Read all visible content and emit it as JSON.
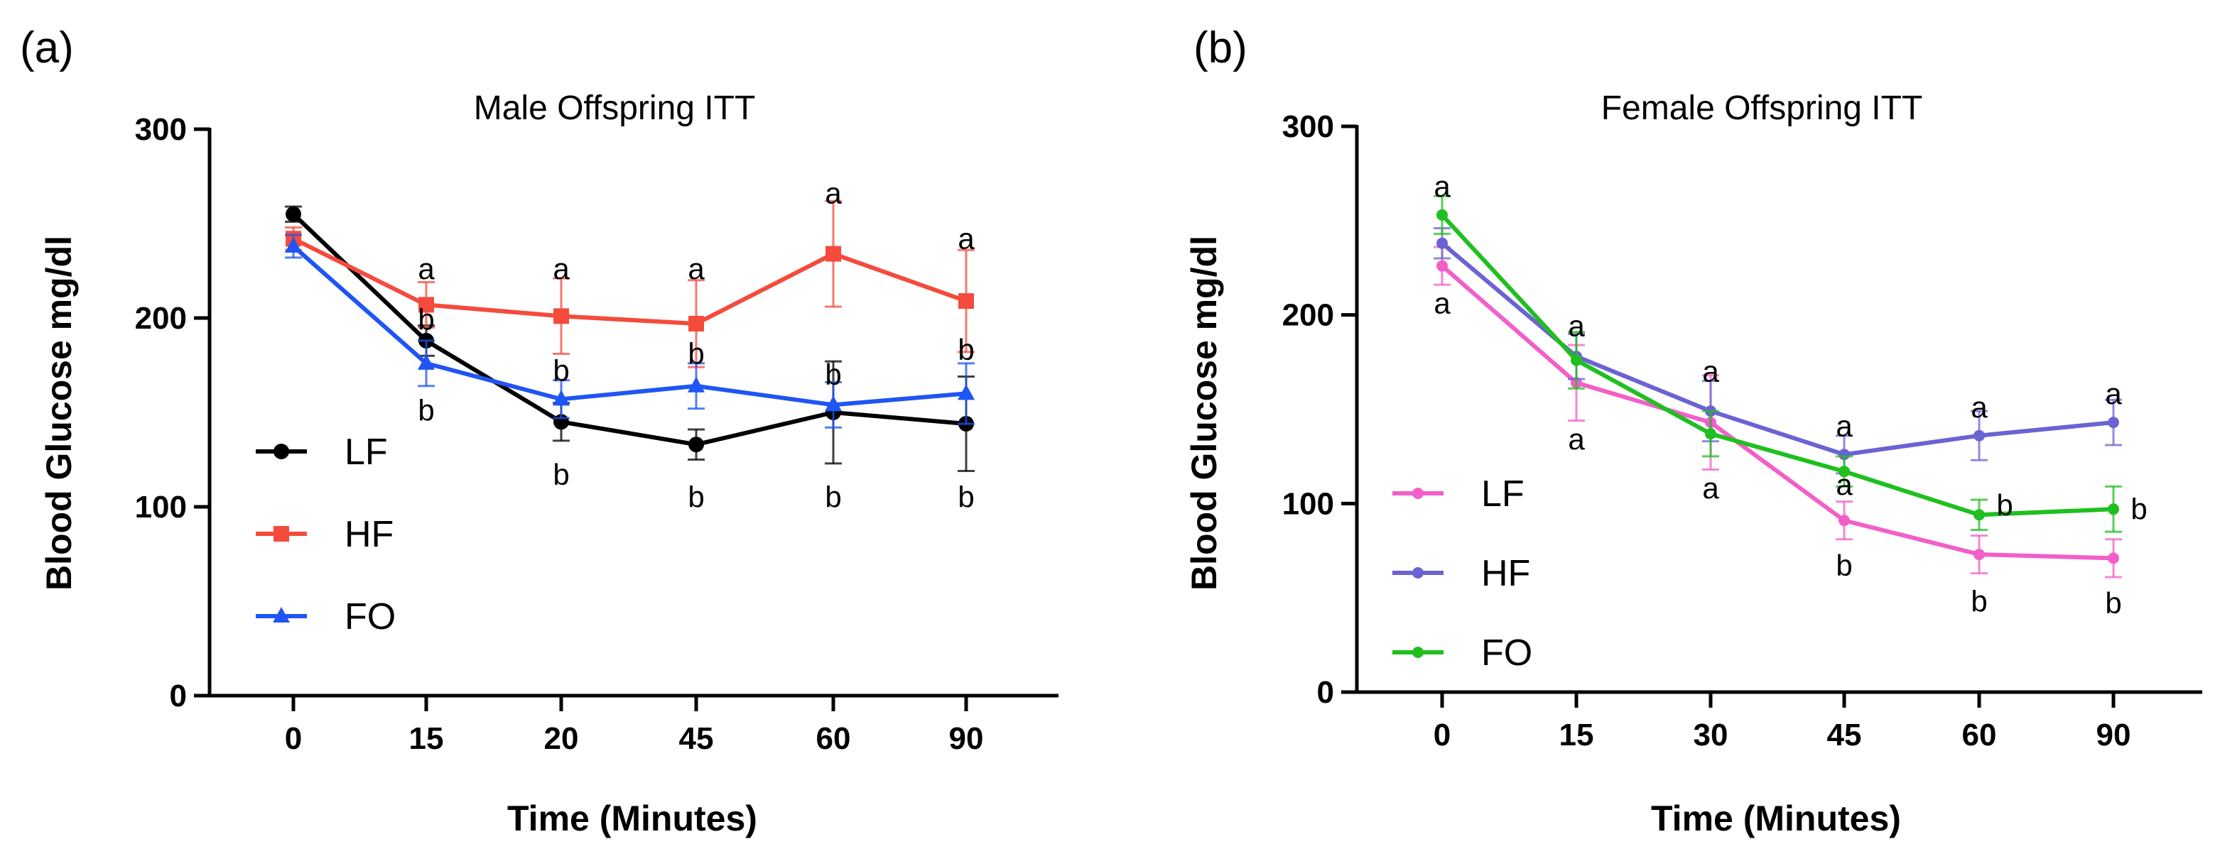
{
  "chart_data": [
    {
      "type": "line",
      "panel_label": "(a)",
      "title": "Male Offspring ITT",
      "xlabel": "Time (Minutes)",
      "ylabel": "Blood Glucose mg/dl",
      "categories": [
        "0",
        "15",
        "20",
        "45",
        "60",
        "90"
      ],
      "ylim": [
        0,
        300
      ],
      "yticks": [
        "0",
        "100",
        "200",
        "300"
      ],
      "legend_position": "left-middle",
      "series": [
        {
          "name": "LF",
          "color": "#000000",
          "marker": "circle",
          "values": [
            255,
            188,
            145,
            133,
            150,
            144
          ],
          "errors": [
            4,
            8,
            10,
            8,
            27,
            25
          ]
        },
        {
          "name": "HF",
          "color": "#f44b3c",
          "marker": "square",
          "values": [
            242,
            207,
            201,
            197,
            234,
            209
          ],
          "errors": [
            6,
            12,
            20,
            23,
            28,
            27
          ]
        },
        {
          "name": "FO",
          "color": "#1f55f2",
          "marker": "triangle",
          "values": [
            238,
            176,
            157,
            164,
            154,
            160
          ],
          "errors": [
            6,
            12,
            10,
            12,
            12,
            16
          ]
        }
      ],
      "annotations": [
        {
          "text": "a",
          "x": "15",
          "y": 226
        },
        {
          "text": "b",
          "x": "15",
          "y": 199
        },
        {
          "text": "b",
          "x": "15",
          "y": 151
        },
        {
          "text": "a",
          "x": "20",
          "y": 226
        },
        {
          "text": "b",
          "x": "20",
          "y": 172
        },
        {
          "text": "b",
          "x": "20",
          "y": 117
        },
        {
          "text": "a",
          "x": "45",
          "y": 226
        },
        {
          "text": "b",
          "x": "45",
          "y": 181
        },
        {
          "text": "b",
          "x": "45",
          "y": 105
        },
        {
          "text": "a",
          "x": "60",
          "y": 266
        },
        {
          "text": "b",
          "x": "60",
          "y": 170
        },
        {
          "text": "b",
          "x": "60",
          "y": 105
        },
        {
          "text": "a",
          "x": "90",
          "y": 242
        },
        {
          "text": "b",
          "x": "90",
          "y": 183
        },
        {
          "text": "b",
          "x": "90",
          "y": 105
        }
      ]
    },
    {
      "type": "line",
      "panel_label": "(b)",
      "title": "Female Offspring ITT",
      "xlabel": "Time (Minutes)",
      "ylabel": "Blood Glucose mg/dl",
      "categories": [
        "0",
        "15",
        "30",
        "45",
        "60",
        "90"
      ],
      "ylim": [
        0,
        300
      ],
      "yticks": [
        "0",
        "100",
        "200",
        "300"
      ],
      "legend_position": "left-bottom",
      "series": [
        {
          "name": "LF",
          "color": "#f25fc9",
          "marker": "circle",
          "values": [
            226,
            164,
            143,
            91,
            73,
            71
          ],
          "errors": [
            10,
            20,
            25,
            10,
            10,
            10
          ]
        },
        {
          "name": "HF",
          "color": "#6b63d3",
          "marker": "circle",
          "values": [
            238,
            178,
            149,
            126,
            136,
            143
          ],
          "errors": [
            8,
            12,
            16,
            10,
            13,
            12
          ]
        },
        {
          "name": "FO",
          "color": "#1fbf1f",
          "marker": "circle",
          "values": [
            253,
            176,
            137,
            117,
            94,
            97
          ],
          "errors": [
            10,
            15,
            12,
            8,
            8,
            12
          ]
        }
      ],
      "annotations": [
        {
          "text": "a",
          "x": "0",
          "y": 268
        },
        {
          "text": "a",
          "x": "0",
          "y": 206
        },
        {
          "text": "a",
          "x": "15",
          "y": 194
        },
        {
          "text": "a",
          "x": "15",
          "y": 134
        },
        {
          "text": "a",
          "x": "30",
          "y": 170
        },
        {
          "text": "a",
          "x": "30",
          "y": 108
        },
        {
          "text": "a",
          "x": "45",
          "y": 141
        },
        {
          "text": "a",
          "x": "45",
          "y": 110
        },
        {
          "text": "b",
          "x": "45",
          "y": 67
        },
        {
          "text": "a",
          "x": "60",
          "y": 151
        },
        {
          "text": "b",
          "x": "60",
          "y": 48
        },
        {
          "text": "a",
          "x": "90",
          "y": 158
        },
        {
          "text": "b",
          "x": "90",
          "y": 47
        }
      ],
      "side_annotations": [
        {
          "text": "b",
          "x": "60",
          "y": 99
        },
        {
          "text": "b",
          "x": "90",
          "y": 97
        }
      ]
    }
  ]
}
